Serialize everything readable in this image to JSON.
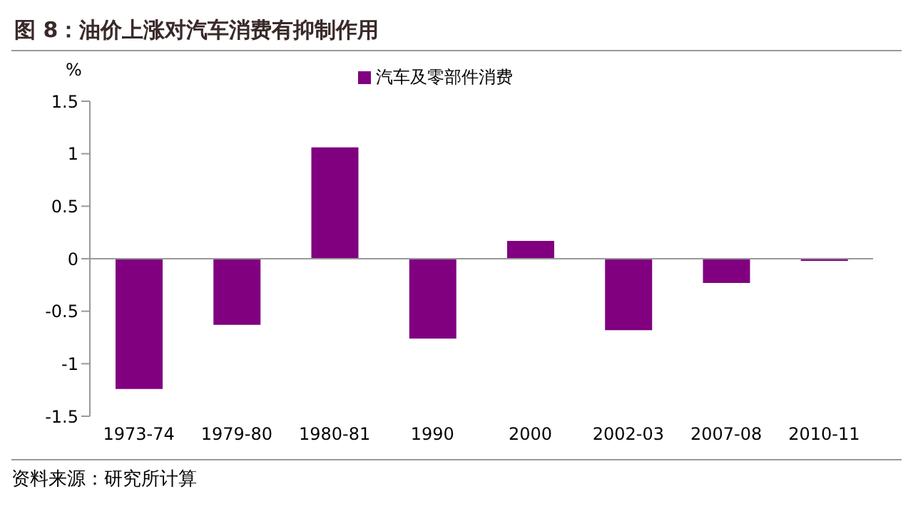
{
  "chart_data": {
    "type": "bar",
    "title": "图 8：油价上涨对汽车消费有抑制作用",
    "ylabel": "%",
    "categories": [
      "1973-74",
      "1979-80",
      "1980-81",
      "1990",
      "2000",
      "2002-03",
      "2007-08",
      "2010-11"
    ],
    "series": [
      {
        "name": "汽车及零部件消费",
        "color": "#800080",
        "values": [
          -1.24,
          -0.63,
          1.06,
          -0.76,
          0.17,
          -0.68,
          -0.23,
          -0.02
        ]
      }
    ],
    "ylim": [
      -1.5,
      1.5
    ],
    "yticks": [
      -1.5,
      -1,
      -0.5,
      0,
      0.5,
      1,
      1.5
    ],
    "ref_lines": [
      {
        "axis": "y",
        "value": 0,
        "color": "#999999"
      }
    ],
    "legend": "top",
    "annotations": [
      "资料来源：研究所计算"
    ]
  }
}
